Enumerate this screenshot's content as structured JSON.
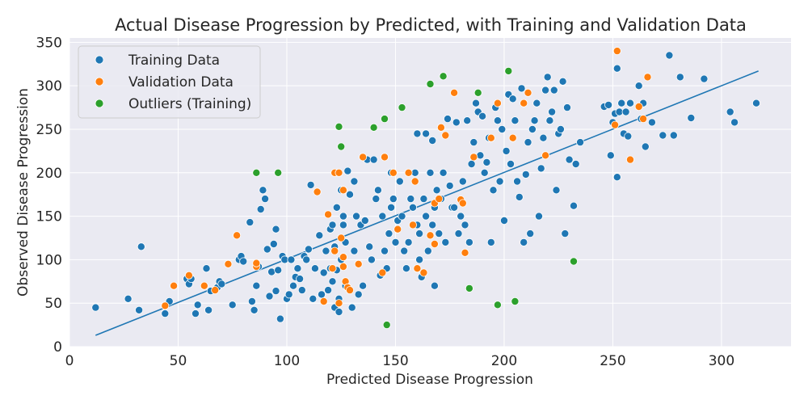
{
  "chart_data": {
    "type": "scatter",
    "title": "Actual Disease Progression by Predicted, with Training and Validation Data",
    "xlabel": "Predicted Disease Progression",
    "ylabel": "Observed Disease Progression",
    "xlim": [
      0,
      332
    ],
    "ylim": [
      0,
      355
    ],
    "xticks": [
      0,
      50,
      100,
      150,
      200,
      250,
      300
    ],
    "yticks": [
      0,
      50,
      100,
      150,
      200,
      250,
      300,
      350
    ],
    "grid": true,
    "legend_position": "top-left",
    "colors": {
      "plot_background": "#eaeaf2",
      "grid": "#ffffff",
      "training": "#1f77b4",
      "validation": "#ff7f0e",
      "outliers": "#2ca02c",
      "fit_line": "#1f77b4"
    },
    "fit_line": {
      "x": [
        12,
        317
      ],
      "y": [
        13,
        317
      ]
    },
    "series": [
      {
        "name": "Training Data",
        "key": "training",
        "points": [
          [
            12,
            45
          ],
          [
            27,
            55
          ],
          [
            32,
            42
          ],
          [
            33,
            115
          ],
          [
            44,
            38
          ],
          [
            46,
            52
          ],
          [
            54,
            78
          ],
          [
            55,
            72
          ],
          [
            56,
            78
          ],
          [
            58,
            38
          ],
          [
            59,
            48
          ],
          [
            63,
            90
          ],
          [
            64,
            42
          ],
          [
            65,
            64
          ],
          [
            68,
            68
          ],
          [
            69,
            75
          ],
          [
            70,
            72
          ],
          [
            75,
            48
          ],
          [
            78,
            100
          ],
          [
            79,
            104
          ],
          [
            80,
            98
          ],
          [
            83,
            143
          ],
          [
            84,
            52
          ],
          [
            85,
            42
          ],
          [
            86,
            70
          ],
          [
            87,
            92
          ],
          [
            88,
            158
          ],
          [
            89,
            180
          ],
          [
            90,
            170
          ],
          [
            91,
            112
          ],
          [
            92,
            58
          ],
          [
            93,
            86
          ],
          [
            94,
            118
          ],
          [
            95,
            135
          ],
          [
            95,
            64
          ],
          [
            96,
            88
          ],
          [
            97,
            32
          ],
          [
            98,
            104
          ],
          [
            99,
            100
          ],
          [
            100,
            55
          ],
          [
            101,
            60
          ],
          [
            102,
            100
          ],
          [
            103,
            70
          ],
          [
            104,
            80
          ],
          [
            105,
            90
          ],
          [
            106,
            78
          ],
          [
            107,
            65
          ],
          [
            108,
            104
          ],
          [
            109,
            100
          ],
          [
            110,
            112
          ],
          [
            111,
            186
          ],
          [
            112,
            55
          ],
          [
            113,
            90
          ],
          [
            114,
            178
          ],
          [
            115,
            128
          ],
          [
            116,
            60
          ],
          [
            117,
            85
          ],
          [
            118,
            110
          ],
          [
            119,
            65
          ],
          [
            120,
            135
          ],
          [
            120,
            90
          ],
          [
            121,
            140
          ],
          [
            121,
            75
          ],
          [
            122,
            115
          ],
          [
            122,
            45
          ],
          [
            123,
            160
          ],
          [
            123,
            88
          ],
          [
            124,
            55
          ],
          [
            124,
            40
          ],
          [
            125,
            180
          ],
          [
            125,
            100
          ],
          [
            126,
            140
          ],
          [
            126,
            150
          ],
          [
            127,
            70
          ],
          [
            127,
            120
          ],
          [
            128,
            202
          ],
          [
            128,
            68
          ],
          [
            129,
            175
          ],
          [
            130,
            45
          ],
          [
            131,
            190
          ],
          [
            131,
            110
          ],
          [
            132,
            150
          ],
          [
            133,
            60
          ],
          [
            134,
            140
          ],
          [
            135,
            70
          ],
          [
            136,
            145
          ],
          [
            137,
            215
          ],
          [
            138,
            115
          ],
          [
            139,
            100
          ],
          [
            140,
            215
          ],
          [
            141,
            170
          ],
          [
            142,
            180
          ],
          [
            143,
            82
          ],
          [
            144,
            150
          ],
          [
            145,
            110
          ],
          [
            146,
            90
          ],
          [
            147,
            130
          ],
          [
            148,
            160
          ],
          [
            148,
            200
          ],
          [
            149,
            170
          ],
          [
            150,
            120
          ],
          [
            151,
            145
          ],
          [
            152,
            190
          ],
          [
            153,
            150
          ],
          [
            154,
            110
          ],
          [
            155,
            90
          ],
          [
            156,
            120
          ],
          [
            157,
            170
          ],
          [
            158,
            160
          ],
          [
            159,
            200
          ],
          [
            160,
            140
          ],
          [
            160,
            245
          ],
          [
            161,
            130
          ],
          [
            161,
            100
          ],
          [
            162,
            80
          ],
          [
            163,
            170
          ],
          [
            164,
            150
          ],
          [
            164,
            245
          ],
          [
            165,
            110
          ],
          [
            166,
            200
          ],
          [
            167,
            140
          ],
          [
            167,
            237
          ],
          [
            168,
            160
          ],
          [
            168,
            70
          ],
          [
            169,
            180
          ],
          [
            170,
            130
          ],
          [
            171,
            170
          ],
          [
            172,
            200
          ],
          [
            173,
            120
          ],
          [
            174,
            262
          ],
          [
            175,
            185
          ],
          [
            176,
            160
          ],
          [
            177,
            160
          ],
          [
            178,
            258
          ],
          [
            179,
            130
          ],
          [
            180,
            150
          ],
          [
            181,
            190
          ],
          [
            182,
            140
          ],
          [
            183,
            260
          ],
          [
            184,
            120
          ],
          [
            185,
            210
          ],
          [
            186,
            235
          ],
          [
            187,
            280
          ],
          [
            188,
            270
          ],
          [
            189,
            220
          ],
          [
            190,
            265
          ],
          [
            191,
            200
          ],
          [
            192,
            212
          ],
          [
            193,
            240
          ],
          [
            194,
            120
          ],
          [
            195,
            180
          ],
          [
            196,
            275
          ],
          [
            197,
            260
          ],
          [
            198,
            190
          ],
          [
            199,
            250
          ],
          [
            200,
            145
          ],
          [
            201,
            225
          ],
          [
            202,
            290
          ],
          [
            203,
            210
          ],
          [
            204,
            285
          ],
          [
            205,
            260
          ],
          [
            206,
            190
          ],
          [
            207,
            172
          ],
          [
            208,
            297
          ],
          [
            209,
            120
          ],
          [
            210,
            198
          ],
          [
            211,
            235
          ],
          [
            212,
            130
          ],
          [
            213,
            250
          ],
          [
            214,
            260
          ],
          [
            215,
            280
          ],
          [
            216,
            150
          ],
          [
            217,
            205
          ],
          [
            218,
            240
          ],
          [
            219,
            295
          ],
          [
            220,
            310
          ],
          [
            221,
            260
          ],
          [
            222,
            270
          ],
          [
            223,
            295
          ],
          [
            224,
            180
          ],
          [
            225,
            245
          ],
          [
            226,
            250
          ],
          [
            227,
            305
          ],
          [
            228,
            130
          ],
          [
            229,
            275
          ],
          [
            230,
            215
          ],
          [
            232,
            162
          ],
          [
            233,
            210
          ],
          [
            235,
            235
          ],
          [
            246,
            276
          ],
          [
            248,
            278
          ],
          [
            249,
            220
          ],
          [
            250,
            258
          ],
          [
            251,
            268
          ],
          [
            252,
            320
          ],
          [
            252,
            195
          ],
          [
            253,
            270
          ],
          [
            254,
            280
          ],
          [
            255,
            245
          ],
          [
            256,
            270
          ],
          [
            257,
            242
          ],
          [
            258,
            280
          ],
          [
            262,
            300
          ],
          [
            263,
            262
          ],
          [
            264,
            280
          ],
          [
            265,
            230
          ],
          [
            268,
            258
          ],
          [
            273,
            243
          ],
          [
            276,
            335
          ],
          [
            278,
            243
          ],
          [
            281,
            310
          ],
          [
            286,
            263
          ],
          [
            292,
            308
          ],
          [
            304,
            270
          ],
          [
            306,
            258
          ],
          [
            316,
            280
          ]
        ]
      },
      {
        "name": "Validation Data",
        "key": "validation",
        "points": [
          [
            44,
            47
          ],
          [
            48,
            70
          ],
          [
            55,
            82
          ],
          [
            62,
            70
          ],
          [
            67,
            65
          ],
          [
            73,
            95
          ],
          [
            77,
            128
          ],
          [
            86,
            92
          ],
          [
            86,
            96
          ],
          [
            114,
            178
          ],
          [
            117,
            52
          ],
          [
            119,
            152
          ],
          [
            121,
            90
          ],
          [
            121,
            90
          ],
          [
            122,
            110
          ],
          [
            122,
            200
          ],
          [
            124,
            200
          ],
          [
            124,
            50
          ],
          [
            125,
            125
          ],
          [
            126,
            92
          ],
          [
            126,
            103
          ],
          [
            126,
            180
          ],
          [
            127,
            75
          ],
          [
            128,
            68
          ],
          [
            129,
            65
          ],
          [
            133,
            95
          ],
          [
            135,
            218
          ],
          [
            144,
            85
          ],
          [
            145,
            218
          ],
          [
            149,
            200
          ],
          [
            151,
            135
          ],
          [
            156,
            200
          ],
          [
            158,
            140
          ],
          [
            159,
            190
          ],
          [
            160,
            90
          ],
          [
            163,
            85
          ],
          [
            166,
            128
          ],
          [
            168,
            165
          ],
          [
            168,
            118
          ],
          [
            170,
            170
          ],
          [
            171,
            252
          ],
          [
            173,
            243
          ],
          [
            177,
            292
          ],
          [
            180,
            169
          ],
          [
            181,
            165
          ],
          [
            182,
            108
          ],
          [
            186,
            218
          ],
          [
            194,
            240
          ],
          [
            197,
            280
          ],
          [
            204,
            240
          ],
          [
            209,
            280
          ],
          [
            211,
            292
          ],
          [
            219,
            220
          ],
          [
            251,
            255
          ],
          [
            252,
            340
          ],
          [
            258,
            215
          ],
          [
            262,
            276
          ],
          [
            264,
            262
          ],
          [
            266,
            310
          ]
        ]
      },
      {
        "name": "Outliers (Training)",
        "key": "outliers",
        "points": [
          [
            86,
            200
          ],
          [
            96,
            200
          ],
          [
            124,
            253
          ],
          [
            125,
            230
          ],
          [
            140,
            252
          ],
          [
            145,
            262
          ],
          [
            146,
            25
          ],
          [
            153,
            275
          ],
          [
            166,
            302
          ],
          [
            172,
            311
          ],
          [
            184,
            67
          ],
          [
            188,
            292
          ],
          [
            197,
            48
          ],
          [
            202,
            317
          ],
          [
            205,
            52
          ],
          [
            232,
            98
          ]
        ]
      }
    ]
  }
}
